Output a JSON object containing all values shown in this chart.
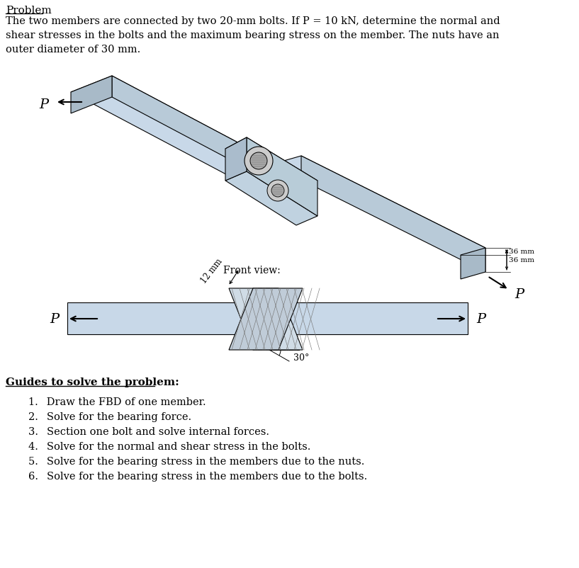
{
  "title": "Problem",
  "problem_text": "The two members are connected by two 20‑mm bolts. If P = 10 kN, determine the normal and\nshear stresses in the bolts and the maximum bearing stress on the member. The nuts have an\nouter diameter of 30 mm.",
  "bg_color": "#ffffff",
  "member_fill": "#c8d8e8",
  "member_fill2": "#b8cad8",
  "member_fill3": "#a8bac8",
  "member_edge": "#000000",
  "dim_36mm_1": "36 mm",
  "dim_36mm_2": "36 mm",
  "dim_12mm": "12 mm",
  "angle_label": "30°",
  "front_view_label": "Front view:",
  "P_label": "P",
  "guides_title": "Guides to solve the problem:",
  "guide_items": [
    "Draw the FBD of one member.",
    "Solve for the bearing force.",
    "Section one bolt and solve internal forces.",
    "Solve for the normal and shear stress in the bolts.",
    "Solve for the bearing stress in the members due to the nuts.",
    "Solve for the bearing stress in the members due to the bolts."
  ]
}
